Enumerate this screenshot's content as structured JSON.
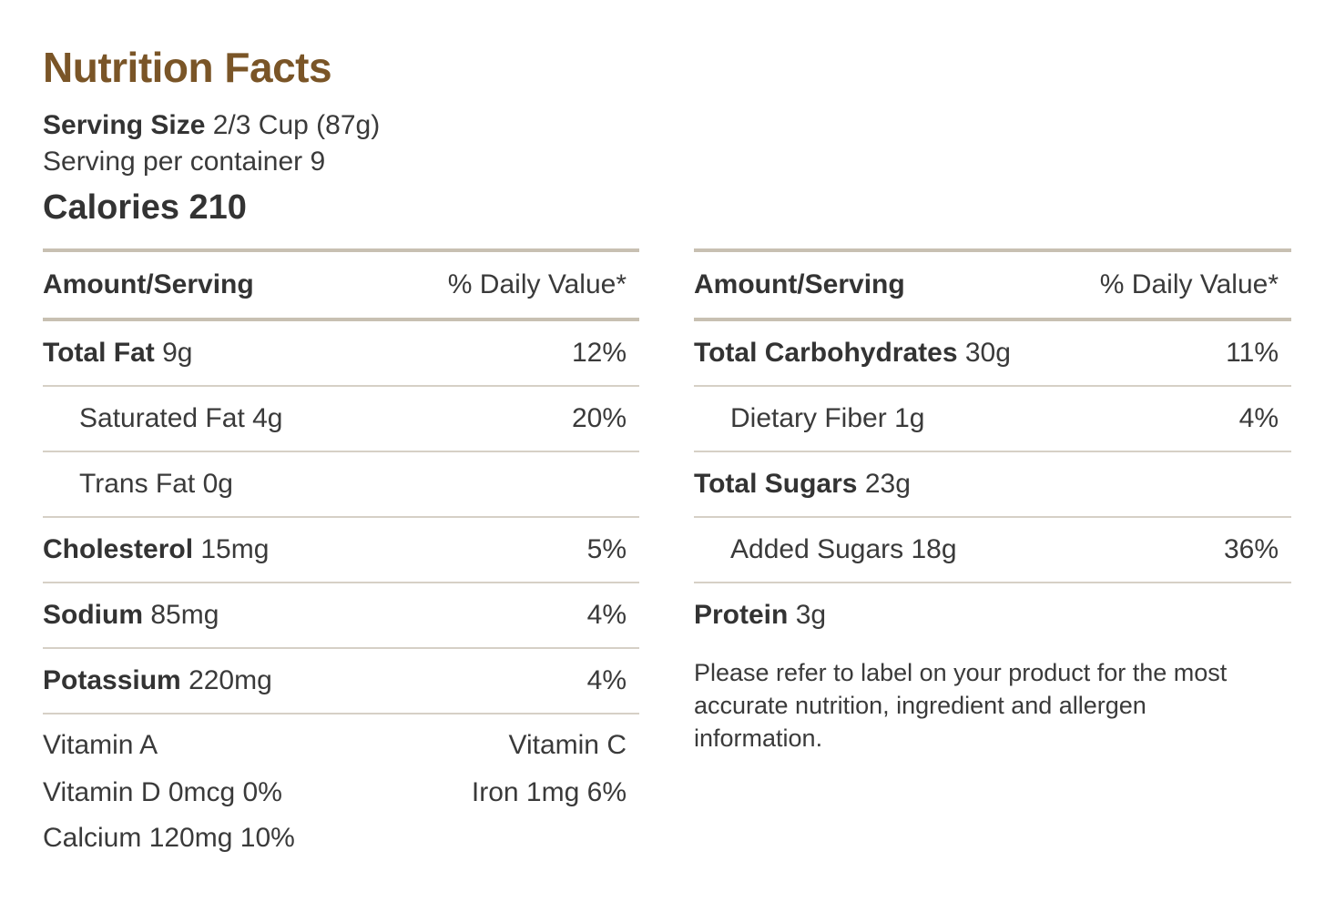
{
  "title": "Nutrition Facts",
  "serving": {
    "size_label": "Serving Size",
    "size_value": "2/3 Cup (87g)",
    "per_container": "Serving per container 9"
  },
  "calories": {
    "label": "Calories",
    "value": "210"
  },
  "left_table": {
    "header_amount": "Amount/Serving",
    "header_dv": "% Daily Value*",
    "rows": [
      {
        "name": "Total Fat",
        "amount": "9g",
        "dv": "12%"
      },
      {
        "name": "Saturated Fat",
        "amount": "4g",
        "dv": "20%"
      },
      {
        "name": "Trans Fat",
        "amount": "0g",
        "dv": ""
      },
      {
        "name": "Cholesterol",
        "amount": "15mg",
        "dv": "5%"
      },
      {
        "name": "Sodium",
        "amount": "85mg",
        "dv": "4%"
      },
      {
        "name": "Potassium",
        "amount": "220mg",
        "dv": "4%"
      }
    ],
    "vitamins": {
      "vitamin_a": "Vitamin A",
      "vitamin_c": "Vitamin C",
      "vitamin_d": "Vitamin D 0mcg 0%",
      "iron": "Iron 1mg 6%",
      "calcium": "Calcium 120mg 10%"
    }
  },
  "right_table": {
    "header_amount": "Amount/Serving",
    "header_dv": "% Daily Value*",
    "rows": [
      {
        "name": "Total Carbohydrates",
        "amount": "30g",
        "dv": "11%"
      },
      {
        "name": "Dietary Fiber",
        "amount": "1g",
        "dv": "4%"
      },
      {
        "name": "Total Sugars",
        "amount": "23g",
        "dv": ""
      },
      {
        "name": "Added Sugars",
        "amount": "18g",
        "dv": "36%"
      },
      {
        "name": "Protein",
        "amount": "3g",
        "dv": ""
      }
    ],
    "disclaimer": "Please refer to label on your product for the most accurate nutrition, ingredient and allergen information."
  },
  "colors": {
    "title": "#7a5527",
    "divider": "#c8c0b2",
    "text": "#333333"
  }
}
